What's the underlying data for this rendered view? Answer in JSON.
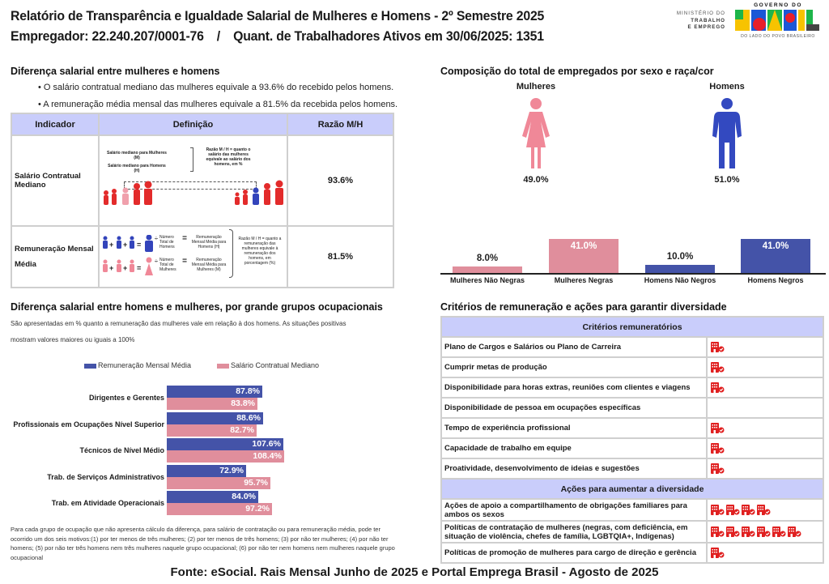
{
  "header": {
    "title": "Relatório de Transparência e Igualdade Salarial de Mulheres e Homens - 2º Semestre 2025",
    "employer_label": "Empregador: 22.240.207/0001-76",
    "separator": "/",
    "workers_label": "Quant. de Trabalhadores Ativos em 30/06/2025: 1351",
    "logo_ministry": [
      "MINISTÉRIO DO",
      "TRABALHO",
      "E EMPREGO"
    ],
    "logo_gov_top": "GOVERNO DO",
    "logo_gov_word": "BRASIL",
    "logo_gov_bottom": "DO LADO DO POVO BRASILEIRO"
  },
  "salary_gap": {
    "title": "Diferença salarial entre mulheres e homens",
    "bullets": [
      "• O salário contratual mediano das mulheres equivale a 93.6% do recebido pelos homens.",
      "• A remuneração média mensal das mulheres equivale a 81.5% da recebida pelos homens."
    ],
    "table": {
      "headers": [
        "Indicador",
        "Definição",
        "Razão M/H"
      ],
      "rows": [
        {
          "indicator": "Salário Contratual Mediano",
          "ratio": "93.6%",
          "def_women": "Salário mediano para Mulheres (M)",
          "def_men": "Salário mediano para Homens (H)",
          "def_ratio": "Razão M / H = quanto o salário das mulheres equivale ao salário dos homens, em %"
        },
        {
          "indicator": "Remuneração Mensal Média",
          "ratio": "81.5%",
          "def_men_count": "Número Total de Homens",
          "def_men_result": "Remuneração Mensal Média para Homens (H)",
          "def_women_count": "Número Total de Mulheres",
          "def_women_result": "Remuneração Mensal Média para Mulheres (M)",
          "def_ratio": "Razão M / H = quanto a remuneração das mulheres equivale à remuneração dos homens, em porcentagem (%)",
          "op_plus": "+",
          "op_eq": "=",
          "op_div": "÷"
        }
      ]
    }
  },
  "composition": {
    "title": "Composição do total de empregados por sexo e raça/cor",
    "women_label": "Mulheres",
    "men_label": "Homens",
    "women_pct": "49.0%",
    "men_pct": "51.0%",
    "colors": {
      "women": "#f08898",
      "men": "#3349c0"
    }
  },
  "occupational": {
    "title": "Diferença salarial entre homens e mulheres, por grande grupos ocupacionais",
    "subtitle_1": "São apresentadas em % quanto a remuneração das mulheres vale em relação à dos homens. As situações positivas",
    "subtitle_2": "mostram valores maiores ou iguais a 100%",
    "footnote": "Para cada grupo de ocupação que não apresenta cálculo da diferença, para salário de contratação ou para remuneração média, pode ter ocorrido um dos seis motivos:(1) por ter menos de três mulheres; (2) por ter menos de três homens; (3) por não ter mulheres; (4) por não ter homens; (5) por não ter três homens nem três mulheres naquele grupo ocupacional; (6) por não ter nem homens nem mulheres naquele grupo ocupacional"
  },
  "criteria": {
    "title": "Critérios de remuneração e ações para garantir diversidade",
    "section1": "Critérios remuneratórios",
    "items1": [
      {
        "label": "Plano de Cargos e Salários ou Plano de Carreira",
        "icons": 1
      },
      {
        "label": "Cumprir metas de produção",
        "icons": 1
      },
      {
        "label": "Disponibilidade para horas extras, reuniões com clientes e viagens",
        "icons": 1
      },
      {
        "label": "Disponibilidade de pessoa em ocupações específicas",
        "icons": 0
      },
      {
        "label": "Tempo de experiência profissional",
        "icons": 1
      },
      {
        "label": "Capacidade de trabalho em equipe",
        "icons": 1
      },
      {
        "label": "Proatividade, desenvolvimento de ideias e sugestões",
        "icons": 1
      }
    ],
    "section2": "Ações para aumentar a diversidade",
    "items2": [
      {
        "label": "Ações de apoio a compartilhamento de obrigações familiares para ambos os sexos",
        "icons": 4
      },
      {
        "label": "Políticas de contratação de mulheres (negras, com deficiência, em situação de violência, chefes de família, LGBTQIA+, Indígenas)",
        "icons": 6
      },
      {
        "label": "Políticas de promoção de mulheres para cargo de direção e gerência",
        "icons": 1
      }
    ],
    "icon_name": "company-check-icon",
    "icon_color": "#e02020"
  },
  "footer": {
    "source": "Fonte: eSocial. Rais Mensal Junho de 2025 e Portal Emprega Brasil - Agosto de 2025"
  },
  "chart_data": [
    {
      "type": "bar",
      "title": "Composição do total de empregados por sexo e raça/cor",
      "categories": [
        "Mulheres Não Negras",
        "Mulheres Negras",
        "Homens Não Negros",
        "Homens Negros"
      ],
      "values": [
        8.0,
        41.0,
        10.0,
        41.0
      ],
      "labels": [
        "8.0%",
        "41.0%",
        "10.0%",
        "41.0%"
      ],
      "colors": [
        "#e08e9c",
        "#e08e9c",
        "#4453a8",
        "#4453a8"
      ],
      "ylim": [
        0,
        41
      ],
      "xlabel": "",
      "ylabel": ""
    },
    {
      "type": "bar",
      "orientation": "horizontal",
      "title": "Diferença salarial entre homens e mulheres, por grande grupos ocupacionais",
      "categories": [
        "Dirigentes e Gerentes",
        "Profissionais em Ocupações Nível Superior",
        "Técnicos de Nível Médio",
        "Trab. de Serviços Administrativos",
        "Trab. em Atividade Operacionais"
      ],
      "series": [
        {
          "name": "Remuneração Mensal Média",
          "color": "#4453a8",
          "values": [
            87.8,
            88.6,
            107.6,
            72.9,
            84.0
          ],
          "labels": [
            "87.8%",
            "88.6%",
            "107.6%",
            "72.9%",
            "84.0%"
          ]
        },
        {
          "name": "Salário Contratual Mediano",
          "color": "#e08e9c",
          "values": [
            83.8,
            82.7,
            108.4,
            95.7,
            97.2
          ],
          "labels": [
            "83.8%",
            "82.7%",
            "108.4%",
            "95.7%",
            "97.2%"
          ]
        }
      ],
      "legend": "top",
      "xlabel": "",
      "ylabel": ""
    }
  ]
}
